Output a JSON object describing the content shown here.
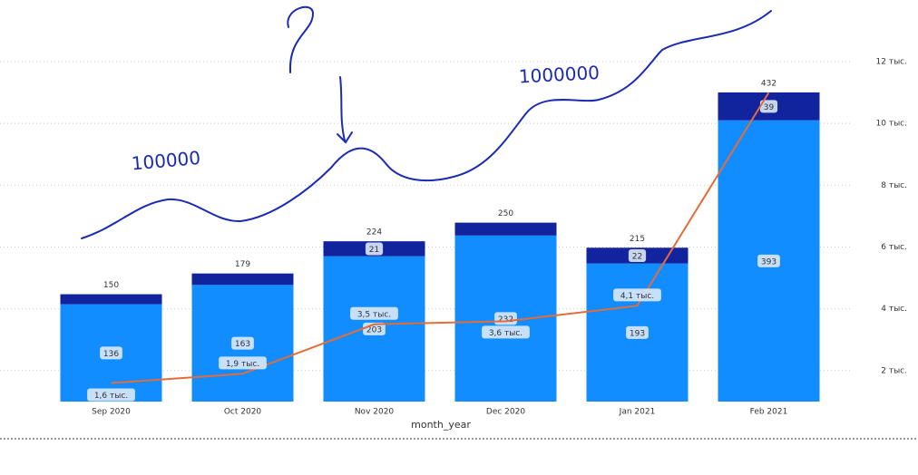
{
  "chart_data": {
    "type": "combo",
    "x_label": "month_year",
    "categories": [
      "Sep 2020",
      "Oct 2020",
      "Nov 2020",
      "Dec 2020",
      "Jan 2021",
      "Feb 2021"
    ],
    "ylim": [
      0,
      475
    ],
    "series": [
      {
        "type": "bar",
        "color": "#118dff",
        "values": [
          136,
          163,
          203,
          232,
          193,
          393
        ]
      },
      {
        "type": "bar",
        "color": "#12239e",
        "values": [
          14,
          16,
          21,
          18,
          22,
          39
        ]
      },
      {
        "type": "line",
        "axis": "y2",
        "color": "#e66c37",
        "values": [
          1600,
          1900,
          3500,
          3600,
          4100,
          11000
        ],
        "value_labels": [
          "1,6 тыс.",
          "1,9 тыс.",
          "3,5 тыс.",
          "3,6 тыс.",
          "4,1 тыс.",
          null
        ]
      }
    ],
    "totals": [
      150,
      179,
      224,
      250,
      215,
      432
    ],
    "y2lim": [
      1000,
      12000
    ],
    "y2ticks": [
      {
        "value": 2000,
        "label": "2 тыс."
      },
      {
        "value": 4000,
        "label": "4 тыс."
      },
      {
        "value": 6000,
        "label": "6 тыс."
      },
      {
        "value": 8000,
        "label": "8 тыс."
      },
      {
        "value": 10000,
        "label": "10 тыс."
      },
      {
        "value": 12000,
        "label": "12 тыс."
      }
    ],
    "grid": true,
    "annotations": [
      "?",
      "100000",
      "1000000"
    ]
  }
}
